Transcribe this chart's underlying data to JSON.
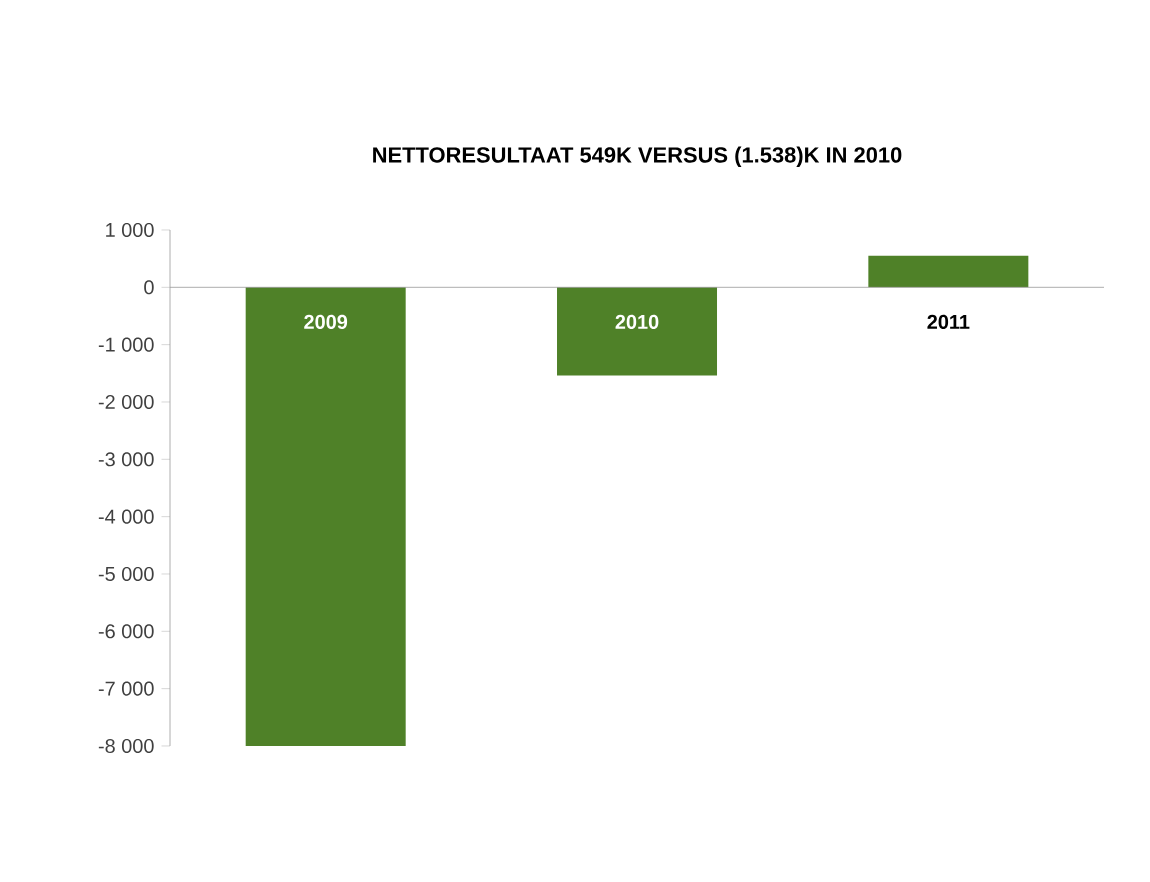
{
  "chart_data": {
    "type": "bar",
    "title": "NETTORESULTAAT 549K VERSUS (1.538)K IN 2010",
    "categories": [
      "2009",
      "2010",
      "2011"
    ],
    "values": [
      -8000,
      -1538,
      549
    ],
    "color": "#4f8128",
    "ylim": [
      -8000,
      1000
    ],
    "yticks": [
      {
        "value": 1000,
        "label": "1 000"
      },
      0,
      {
        "value": -1000,
        "label": "-1 000"
      },
      {
        "value": -2000,
        "label": "-2 000"
      },
      {
        "value": -3000,
        "label": "-3 000"
      },
      {
        "value": -4000,
        "label": "-4 000"
      },
      {
        "value": -5000,
        "label": "-5 000"
      },
      {
        "value": -6000,
        "label": "-6 000"
      },
      {
        "value": -7000,
        "label": "-7 000"
      },
      {
        "value": -8000,
        "label": "-8 000"
      }
    ]
  }
}
